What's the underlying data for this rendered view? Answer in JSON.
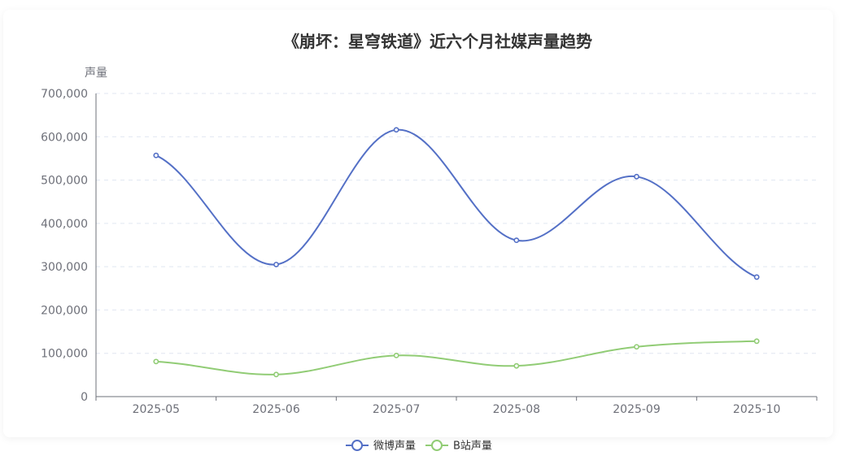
{
  "chart_data": {
    "type": "line",
    "title": "《崩坏：星穹铁道》近六个月社媒声量趋势",
    "ylabel": "声量",
    "xlabel": "",
    "categories": [
      "2025-05",
      "2025-06",
      "2025-07",
      "2025-08",
      "2025-09",
      "2025-10"
    ],
    "ylim": [
      0,
      700000
    ],
    "yticks": [
      0,
      100000,
      200000,
      300000,
      400000,
      500000,
      600000,
      700000
    ],
    "ytick_labels": [
      "0",
      "100,000",
      "200,000",
      "300,000",
      "400,000",
      "500,000",
      "600,000",
      "700,000"
    ],
    "smooth": true,
    "grid": "horizontal-dashed",
    "legend_position": "bottom-center",
    "series": [
      {
        "name": "微博声量",
        "color": "#5470c6",
        "values": [
          557000,
          305000,
          616000,
          361000,
          508000,
          276000
        ]
      },
      {
        "name": "B站声量",
        "color": "#91cc75",
        "values": [
          81000,
          51000,
          95000,
          71000,
          115000,
          128000
        ]
      }
    ]
  }
}
